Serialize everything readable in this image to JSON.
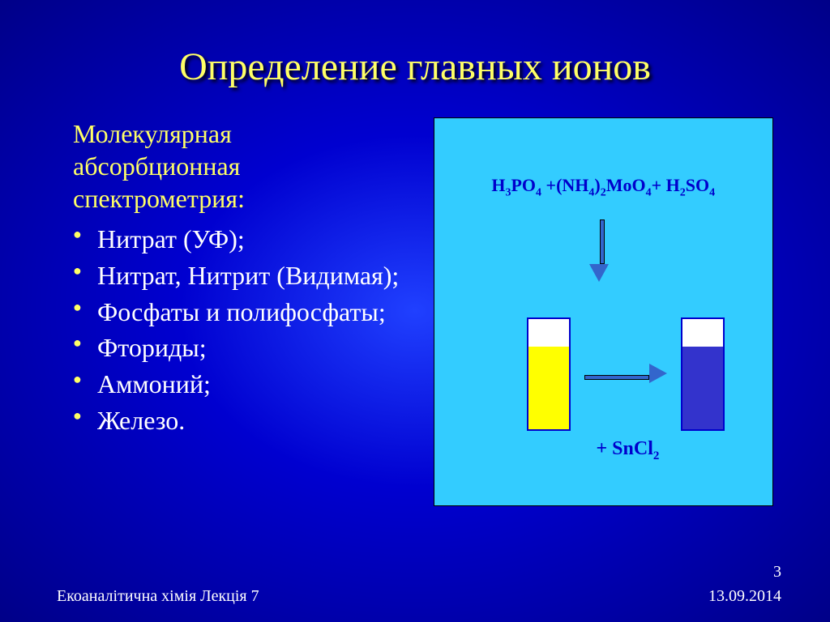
{
  "title": "Определение главных ионов",
  "subhead_line1": "Молекулярная",
  "subhead_line2": "абсорбционная",
  "subhead_line3": "спектрометрия:",
  "bullets": [
    "Нитрат (УФ);",
    "Нитрат, Нитрит (Видимая);",
    "Фосфаты и полифосфаты;",
    "Фториды;",
    "Аммоний;",
    "Железо."
  ],
  "formula_html": "H<sub>3</sub>PO<sub>4</sub> +(NH<sub>4</sub>)<sub>2</sub>MoO<sub>4</sub>+ H<sub>2</sub>SO<sub>4</sub>",
  "sncl_html": "+ SnCl<sub>2</sub>",
  "footer_left": "Екоаналітична хімія Лекція 7",
  "footer_right": "13.09.2014",
  "page_number": "3",
  "diagram": {
    "panel_bg": "#33ccff",
    "tube1_fill": "#ffff00",
    "tube2_fill": "#3333cc",
    "tube_border": "#0000cc",
    "arrow_color": "#3366cc",
    "formula_color": "#0000cc"
  },
  "colors": {
    "title_color": "#ffff66",
    "bullet_color": "#ffff66",
    "text_color": "#ffffff",
    "bg_center": "#2040ff",
    "bg_edge": "#000088"
  },
  "typography": {
    "title_fontsize": 48,
    "subhead_fontsize": 32,
    "bullet_fontsize": 32,
    "formula_fontsize": 22,
    "footer_fontsize": 20
  }
}
